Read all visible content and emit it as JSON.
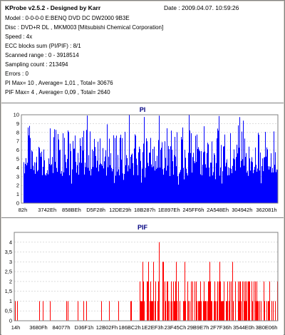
{
  "header": {
    "title": "KProbe v2.5.2 - Designed by Karr",
    "date": "Date : 2009.04.07. 10:59:26"
  },
  "info_lines": [
    "Model : 0-0-0-0 E:BENQ    DVD DC DW2000    9B3E",
    "Disc : DVD+R DL , MKM003 [Mitsubishi Chemical Corporation]",
    "Speed : 4x",
    "ECC blocks sum (PI/PIF) : 8/1",
    "Scanned range : 0 - 3918514",
    "Sampling count : 213494",
    "Errors : 0",
    "PI Max= 10 , Average= 1,01 , Total= 30676",
    "PIF Max= 4 , Average= 0,09 , Total= 2640"
  ],
  "chart_data": [
    {
      "type": "bar",
      "title": "PI",
      "color": "#0000ff",
      "ylim": [
        0,
        10
      ],
      "yticks": [
        "0",
        "1",
        "2",
        "3",
        "4",
        "5",
        "6",
        "7",
        "8",
        "9",
        "10"
      ],
      "xtick_labels": [
        "82h",
        "3742Eh",
        "858BEh",
        "D5F28h",
        "12DE29h",
        "18B287h",
        "1E897Eh",
        "245FF6h",
        "2A548Eh",
        "304942h",
        "362081h"
      ],
      "max": 10,
      "average": 1.01,
      "total": 30676
    },
    {
      "type": "bar",
      "title": "PIF",
      "color": "#ff0000",
      "ylim": [
        0,
        4.5
      ],
      "yticks": [
        "0",
        "0,5",
        "1",
        "1,5",
        "2",
        "2,5",
        "3",
        "3,5",
        "4"
      ],
      "xtick_labels": [
        "14h",
        "3680Fh",
        "84077h",
        "D36F1h",
        "12B02Fh",
        "186BC2h",
        "1E2EF3h",
        "23F45Ch",
        "29B9E7h",
        "2F7F36h",
        "3544E0h",
        "3B0E06h"
      ],
      "max": 4,
      "average": 0.09,
      "total": 2640
    }
  ]
}
